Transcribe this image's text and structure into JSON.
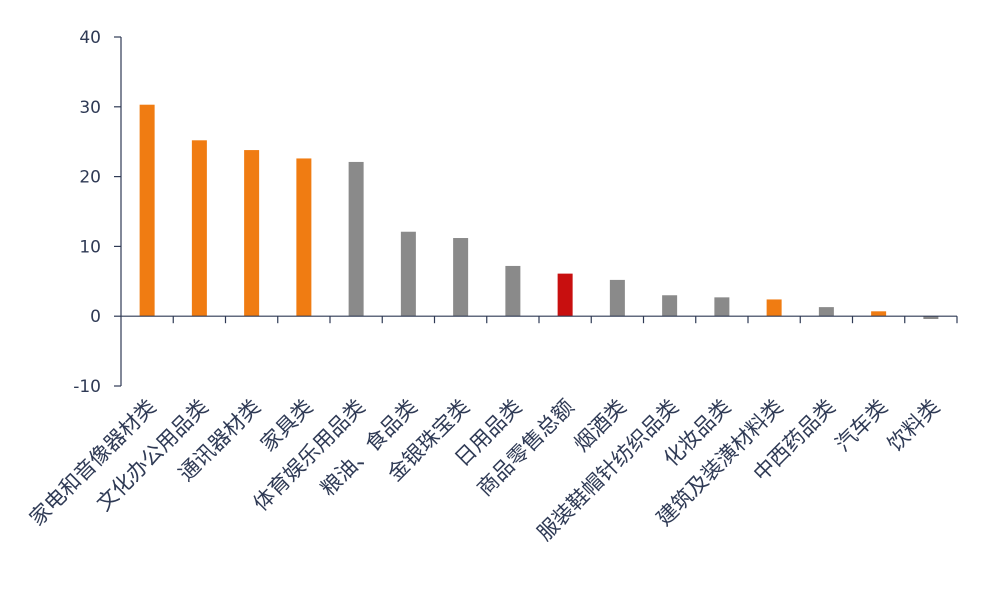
{
  "chart_data": {
    "type": "bar",
    "categories": [
      "家电和音像器材类",
      "文化办公用品类",
      "通讯器材类",
      "家具类",
      "体育娱乐用品类",
      "粮油、食品类",
      "金银珠宝类",
      "日用品类",
      "商品零售总额",
      "烟酒类",
      "服装鞋帽针纺织品类",
      "化妆品类",
      "建筑及装潢材料类",
      "中西药品类",
      "汽车类",
      "饮料类"
    ],
    "values": [
      30.3,
      25.2,
      23.8,
      22.6,
      22.1,
      12.1,
      11.2,
      7.2,
      6.1,
      5.2,
      3.0,
      2.7,
      2.4,
      1.3,
      0.7,
      -0.4
    ],
    "bar_colors": [
      "#f07c12",
      "#f07c12",
      "#f07c12",
      "#f07c12",
      "#8a8a8a",
      "#8a8a8a",
      "#8a8a8a",
      "#8a8a8a",
      "#c80f0f",
      "#8a8a8a",
      "#8a8a8a",
      "#8a8a8a",
      "#f07c12",
      "#8a8a8a",
      "#f07c12",
      "#8a8a8a"
    ],
    "yticks": [
      "40",
      "30",
      "20",
      "10",
      "0",
      "-10"
    ],
    "ylim": [
      -10,
      40
    ],
    "grid": false,
    "title": "",
    "xlabel": "",
    "ylabel": ""
  }
}
